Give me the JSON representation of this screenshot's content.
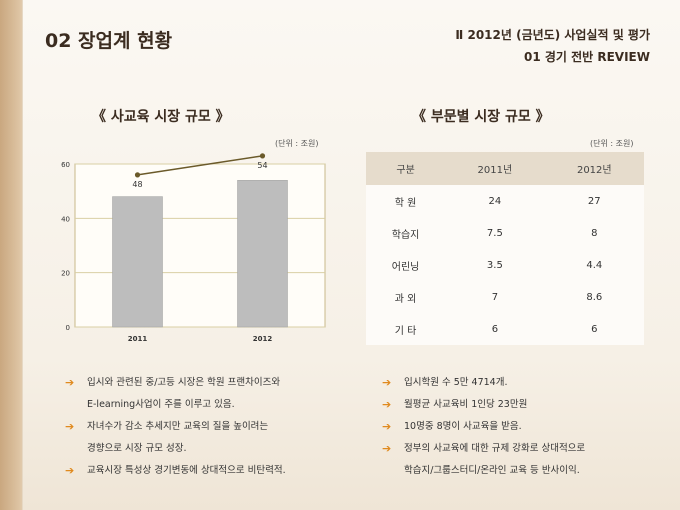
{
  "header": {
    "title": "02  장업계 현황",
    "section": "Ⅱ  2012년 (금년도) 사업실적 및 평가",
    "subsection": "01  경기 전반 REVIEW"
  },
  "left": {
    "heading": "《  사교육 시장 규모  》",
    "unit": "(단위 : 조원)"
  },
  "right": {
    "heading": "《  부문별 시장 규모  》",
    "unit": "(단위 : 조원)",
    "table": {
      "headers": [
        "구분",
        "2011년",
        "2012년"
      ],
      "rows": [
        [
          "학  원",
          "24",
          "27"
        ],
        [
          "학습지",
          "7.5",
          "8"
        ],
        [
          "어린닝",
          "3.5",
          "4.4"
        ],
        [
          "과  외",
          "7",
          "8.6"
        ],
        [
          "기  타",
          "6",
          "6"
        ]
      ]
    }
  },
  "chart_data": {
    "type": "bar",
    "categories": [
      "2011",
      "2012"
    ],
    "series": [
      {
        "values": [
          48,
          54
        ]
      }
    ],
    "data_labels": [
      "48",
      "54"
    ],
    "trend_line": [
      56,
      63
    ],
    "yticks": [
      0,
      20,
      40,
      60
    ],
    "ylim": [
      0,
      60
    ],
    "grid": true,
    "colors": {
      "bar": "#bdbdbd",
      "trend": "#6b5a2a",
      "grid": "#d9cfa5",
      "axis": "#c8b98a"
    }
  },
  "notes_left": [
    {
      "arrow": "➔",
      "text": "입시와 관련된 중/고등 시장은 학원 프랜차이즈와"
    },
    {
      "arrow": "",
      "text": "E-learning사업이 주를 이루고 있음."
    },
    {
      "arrow": "➔",
      "text": "자녀수가 감소 추세지만 교육의 질을 높이려는"
    },
    {
      "arrow": "",
      "text": "경향으로 시장 규모 성장."
    },
    {
      "arrow": "➔",
      "text": "교육시장 특성상 경기변동에 상대적으로 비탄력적."
    }
  ],
  "notes_right": [
    {
      "arrow": "➔",
      "text": "입시학원 수 5만 4714개."
    },
    {
      "arrow": "➔",
      "text": "월평균 사교육비 1인당 23만원"
    },
    {
      "arrow": "➔",
      "text": "10명중 8명이 사교육을 받음."
    },
    {
      "arrow": "➔",
      "text": "정부의 사교육에 대한 규제 강화로 상대적으로"
    },
    {
      "arrow": "",
      "text": "학습지/그룹스터디/온라인 교육 등 반사이익."
    }
  ]
}
